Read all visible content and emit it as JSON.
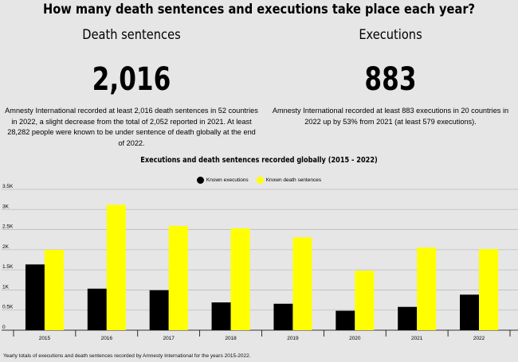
{
  "header": {
    "title": "How many death sentences and executions take place each year?"
  },
  "left": {
    "heading": "Death sentences",
    "figure": "2,016",
    "description": "Amnesty International recorded at least 2,016 death sentences in 52 countries in 2022, a slight decrease from the total of 2,052 reported in 2021. At least 28,282 people were known to be under sentence of death globally at the end of 2022."
  },
  "right": {
    "heading": "Executions",
    "figure": "883",
    "description": "Amnesty International recorded at least 883 executions in 20 countries in 2022 up by 53% from 2021 (at least 579 executions)."
  },
  "caption": "Yearly totals of executions and death sentences recorded by Amnesty International for the years 2015-2022.",
  "colors": {
    "executions": "#000000",
    "sentences": "#ffff00",
    "background": "#e6e6e6",
    "grid": "#bdbdbd"
  },
  "chart_data": {
    "type": "bar",
    "title": "Executions and death sentences recorded globally (2015 - 2022)",
    "categories": [
      "2015",
      "2016",
      "2017",
      "2018",
      "2019",
      "2020",
      "2021",
      "2022"
    ],
    "series": [
      {
        "name": "Known executions",
        "values": [
          1634,
          1032,
          993,
          690,
          657,
          483,
          579,
          883
        ]
      },
      {
        "name": "Known death sentences",
        "values": [
          1998,
          3117,
          2591,
          2531,
          2307,
          1477,
          2052,
          2016
        ]
      }
    ],
    "y_ticks": [
      0,
      500,
      1000,
      1500,
      2000,
      2500,
      3000,
      3500
    ],
    "y_tick_labels": [
      "0",
      "0.5K",
      "1K",
      "1.5K",
      "2K",
      "2.5K",
      "3K",
      "3.5K"
    ],
    "ylim": [
      0,
      3500
    ],
    "grid": true,
    "legend_position": "top-center"
  }
}
